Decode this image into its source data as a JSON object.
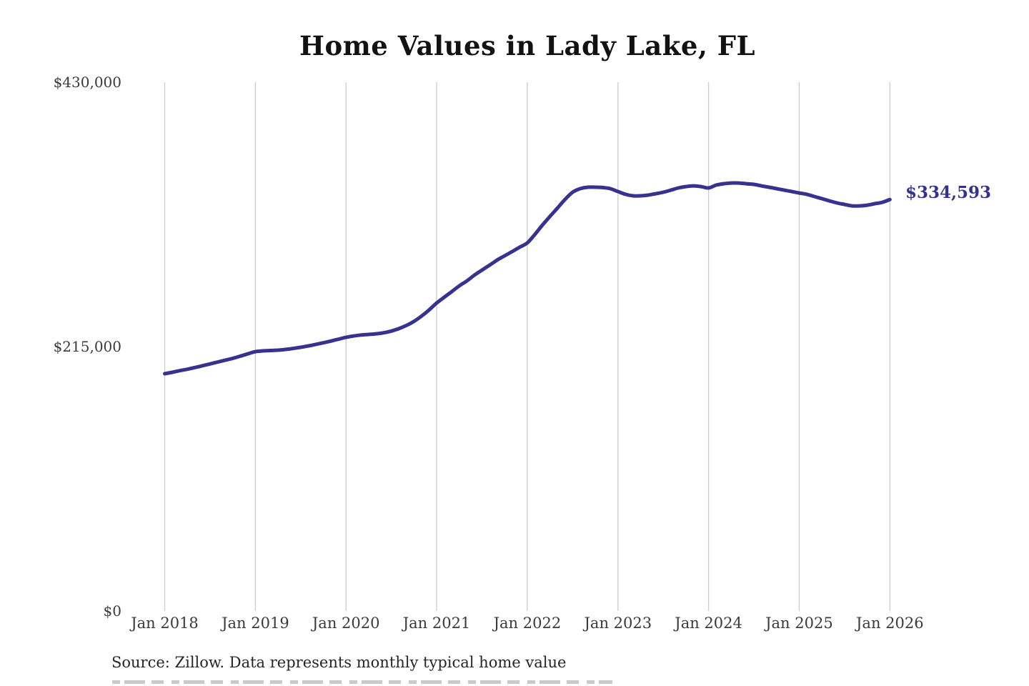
{
  "chart": {
    "title": "Home Values in Lady Lake, FL",
    "end_label": "$334,593",
    "source": "Source: Zillow. Data represents monthly typical home value",
    "line_color": "#37318f",
    "grid_color": "#cccccc",
    "background_color": "#ffffff"
  },
  "chart_data": {
    "type": "line",
    "title": "Home Values in Lady Lake, FL",
    "xlabel": "",
    "ylabel": "",
    "ylim": [
      0,
      430000
    ],
    "grid": "vertical-only",
    "legend": "none",
    "y_ticks": [
      {
        "value": 0,
        "label": "$0"
      },
      {
        "value": 215000,
        "label": "$215,000"
      },
      {
        "value": 430000,
        "label": "$430,000"
      }
    ],
    "x_ticks": [
      "Jan 2018",
      "Jan 2019",
      "Jan 2020",
      "Jan 2021",
      "Jan 2022",
      "Jan 2023",
      "Jan 2024",
      "Jan 2025",
      "Jan 2026"
    ],
    "x_start": "Jan 2018",
    "x_interval": "month",
    "annotation": {
      "text": "$334,593",
      "x": "Jan 2026",
      "y": 334593
    },
    "series": [
      {
        "name": "Typical home value",
        "color": "#37318f",
        "values": [
          192900,
          194100,
          195400,
          196600,
          198000,
          199400,
          200900,
          202400,
          203900,
          205400,
          207200,
          209100,
          210900,
          211500,
          211800,
          212100,
          212700,
          213500,
          214400,
          215500,
          216800,
          218100,
          219500,
          221000,
          222500,
          223600,
          224400,
          224900,
          225400,
          226200,
          227600,
          229600,
          232200,
          235500,
          239800,
          244800,
          250400,
          255100,
          259700,
          264400,
          268400,
          273100,
          277200,
          281200,
          285300,
          288800,
          292300,
          295800,
          299300,
          306200,
          313800,
          320800,
          327700,
          334700,
          340500,
          343400,
          344600,
          344600,
          344300,
          343400,
          341100,
          338800,
          337600,
          337600,
          338200,
          339300,
          340500,
          342200,
          344000,
          345100,
          345700,
          345100,
          344000,
          346300,
          347400,
          348000,
          348000,
          347400,
          346900,
          345700,
          344600,
          343400,
          342200,
          341100,
          339900,
          338800,
          337000,
          335300,
          333500,
          331800,
          330600,
          329400,
          329400,
          330000,
          331200,
          332300,
          334593
        ]
      }
    ]
  }
}
